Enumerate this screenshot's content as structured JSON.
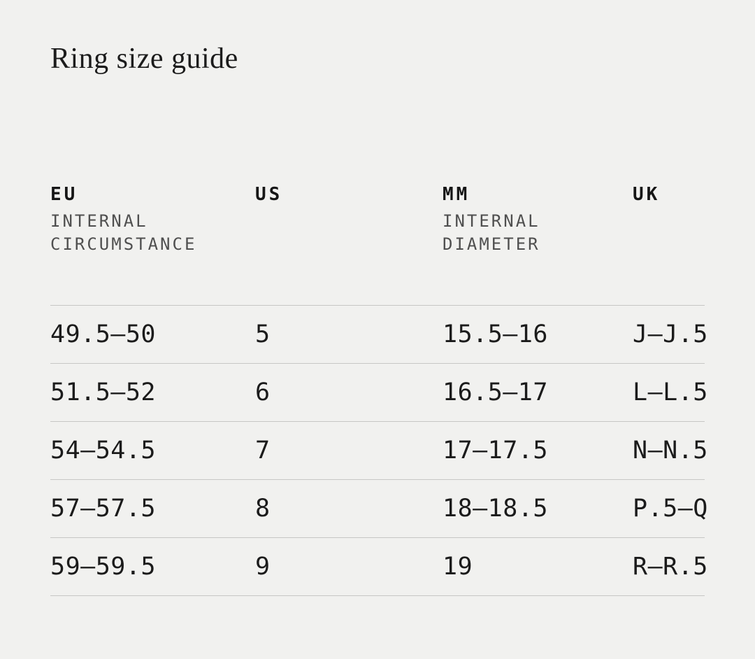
{
  "title": "Ring size guide",
  "colors": {
    "background": "#f1f1ef",
    "text": "#1b1b1b",
    "subheader_text": "#4f4f4f",
    "divider": "#c7c7c5"
  },
  "table": {
    "columns": [
      {
        "label": "EU",
        "sub": [
          "INTERNAL",
          "CIRCUMSTANCE"
        ]
      },
      {
        "label": "US",
        "sub": []
      },
      {
        "label": "MM",
        "sub": [
          "INTERNAL",
          "DIAMETER"
        ]
      },
      {
        "label": "UK",
        "sub": []
      }
    ],
    "rows": [
      [
        "49.5—50",
        "5",
        "15.5—16",
        "J—J.5"
      ],
      [
        "51.5—52",
        "6",
        "16.5—17",
        "L—L.5"
      ],
      [
        "54—54.5",
        "7",
        "17—17.5",
        "N—N.5"
      ],
      [
        "57—57.5",
        "8",
        "18—18.5",
        "P.5—Q"
      ],
      [
        "59—59.5",
        "9",
        "19",
        "R—R.5"
      ]
    ]
  }
}
